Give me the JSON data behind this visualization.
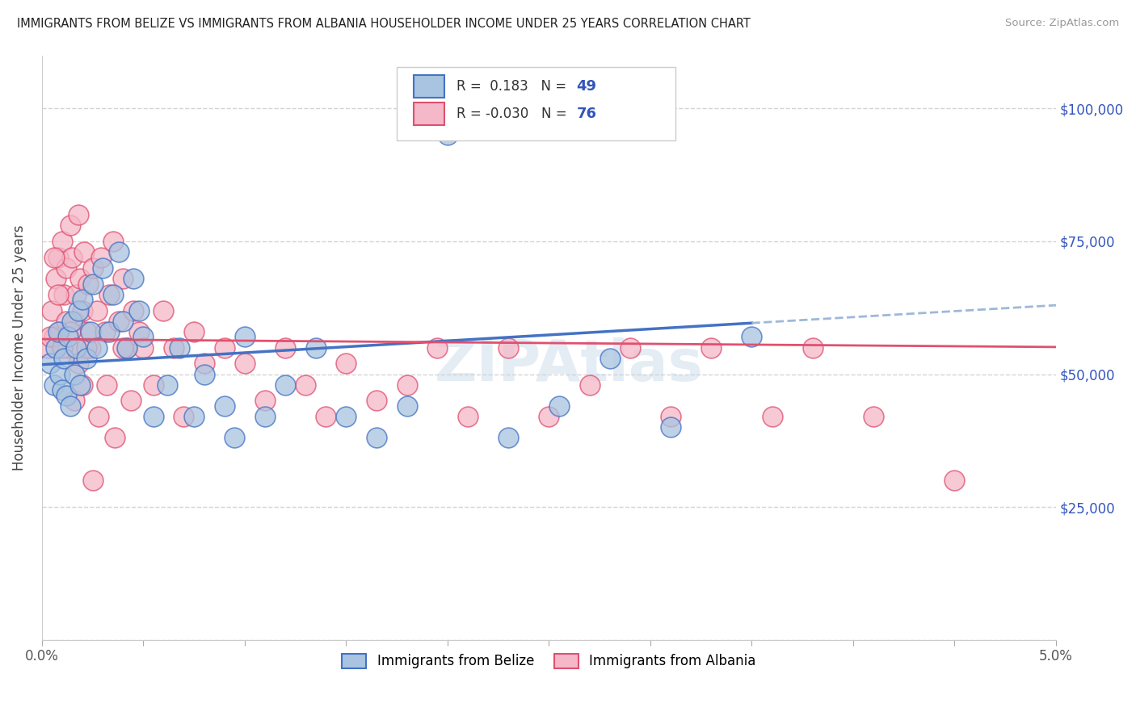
{
  "title": "IMMIGRANTS FROM BELIZE VS IMMIGRANTS FROM ALBANIA HOUSEHOLDER INCOME UNDER 25 YEARS CORRELATION CHART",
  "source": "Source: ZipAtlas.com",
  "ylabel": "Householder Income Under 25 years",
  "legend_label_belize": "Immigrants from Belize",
  "legend_label_albania": "Immigrants from Albania",
  "R_belize": 0.183,
  "N_belize": 49,
  "R_albania": -0.03,
  "N_albania": 76,
  "xlim": [
    0.0,
    5.0
  ],
  "ylim": [
    0,
    110000
  ],
  "yticks": [
    0,
    25000,
    50000,
    75000,
    100000
  ],
  "ytick_labels": [
    "",
    "$25,000",
    "$50,000",
    "$75,000",
    "$100,000"
  ],
  "color_belize_fill": "#a8c4e0",
  "color_belize_edge": "#4472c4",
  "color_albania_fill": "#f4b8c8",
  "color_albania_edge": "#e05070",
  "color_trend_belize": "#4472c4",
  "color_trend_albania": "#e05070",
  "color_trend_dashed": "#9eb8d8",
  "belize_x": [
    0.04,
    0.06,
    0.07,
    0.08,
    0.09,
    0.1,
    0.11,
    0.12,
    0.13,
    0.14,
    0.15,
    0.16,
    0.17,
    0.18,
    0.19,
    0.2,
    0.22,
    0.24,
    0.25,
    0.27,
    0.3,
    0.33,
    0.35,
    0.38,
    0.4,
    0.42,
    0.45,
    0.48,
    0.5,
    0.55,
    0.62,
    0.68,
    0.75,
    0.8,
    0.9,
    0.95,
    1.0,
    1.1,
    1.2,
    1.35,
    1.5,
    1.65,
    1.8,
    2.0,
    2.3,
    2.55,
    2.8,
    3.1,
    3.5
  ],
  "belize_y": [
    52000,
    48000,
    55000,
    58000,
    50000,
    47000,
    53000,
    46000,
    57000,
    44000,
    60000,
    50000,
    55000,
    62000,
    48000,
    64000,
    53000,
    58000,
    67000,
    55000,
    70000,
    58000,
    65000,
    73000,
    60000,
    55000,
    68000,
    62000,
    57000,
    42000,
    48000,
    55000,
    42000,
    50000,
    44000,
    38000,
    57000,
    42000,
    48000,
    55000,
    42000,
    38000,
    44000,
    95000,
    38000,
    44000,
    53000,
    40000,
    57000
  ],
  "albania_x": [
    0.03,
    0.05,
    0.06,
    0.07,
    0.08,
    0.09,
    0.1,
    0.11,
    0.12,
    0.13,
    0.14,
    0.15,
    0.16,
    0.17,
    0.18,
    0.19,
    0.2,
    0.21,
    0.22,
    0.23,
    0.24,
    0.25,
    0.27,
    0.29,
    0.31,
    0.33,
    0.35,
    0.38,
    0.4,
    0.42,
    0.45,
    0.48,
    0.5,
    0.55,
    0.6,
    0.65,
    0.7,
    0.75,
    0.8,
    0.9,
    1.0,
    1.1,
    1.2,
    1.3,
    1.4,
    1.5,
    1.65,
    1.8,
    1.95,
    2.1,
    2.3,
    2.5,
    2.7,
    2.9,
    3.1,
    3.3,
    3.6,
    3.8,
    4.1,
    4.5,
    0.04,
    0.06,
    0.08,
    0.1,
    0.12,
    0.14,
    0.16,
    0.18,
    0.2,
    0.22,
    0.25,
    0.28,
    0.32,
    0.36,
    0.4,
    0.44
  ],
  "albania_y": [
    55000,
    62000,
    57000,
    68000,
    72000,
    58000,
    75000,
    65000,
    70000,
    55000,
    78000,
    72000,
    60000,
    65000,
    80000,
    68000,
    62000,
    73000,
    58000,
    67000,
    55000,
    70000,
    62000,
    72000,
    58000,
    65000,
    75000,
    60000,
    68000,
    55000,
    62000,
    58000,
    55000,
    48000,
    62000,
    55000,
    42000,
    58000,
    52000,
    55000,
    52000,
    45000,
    55000,
    48000,
    42000,
    52000,
    45000,
    48000,
    55000,
    42000,
    55000,
    42000,
    48000,
    55000,
    42000,
    55000,
    42000,
    55000,
    42000,
    30000,
    57000,
    72000,
    65000,
    55000,
    60000,
    58000,
    45000,
    52000,
    48000,
    55000,
    30000,
    42000,
    48000,
    38000,
    55000,
    45000
  ]
}
